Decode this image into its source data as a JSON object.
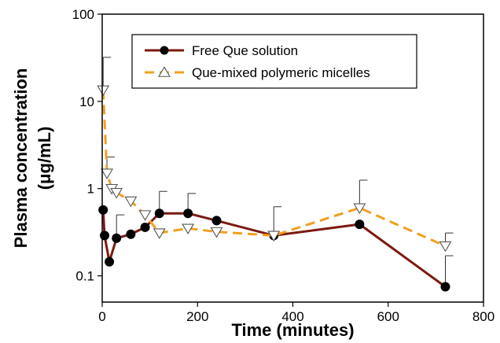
{
  "chart_data": {
    "type": "line",
    "xlabel": "Time (minutes)",
    "ylabel_lines": [
      "Plasma concentration",
      "(μg/mL)"
    ],
    "x_scale": "linear",
    "y_scale": "log",
    "xlim": [
      0,
      800
    ],
    "ylim": [
      0.05,
      100
    ],
    "x_ticks": [
      "0",
      "200",
      "400",
      "600",
      "800"
    ],
    "y_ticks": [
      "100",
      "10",
      "1",
      "0.1"
    ],
    "grid": false,
    "legend_position": "top-center",
    "series": [
      {
        "name": "Free Que solution",
        "color": "#7b1a12",
        "line_style": "solid",
        "marker": "filled-circle",
        "points": [
          {
            "x": 2,
            "y": 0.57
          },
          {
            "x": 5,
            "y": 0.29
          },
          {
            "x": 15,
            "y": 0.145
          },
          {
            "x": 30,
            "y": 0.27
          },
          {
            "x": 60,
            "y": 0.3
          },
          {
            "x": 90,
            "y": 0.36
          },
          {
            "x": 120,
            "y": 0.52
          },
          {
            "x": 180,
            "y": 0.52
          },
          {
            "x": 240,
            "y": 0.43
          },
          {
            "x": 360,
            "y": 0.29
          },
          {
            "x": 540,
            "y": 0.39
          },
          {
            "x": 720,
            "y": 0.075
          }
        ],
        "error_upper": [
          null,
          null,
          null,
          0.5,
          null,
          null,
          0.93,
          0.88,
          null,
          0.62,
          null,
          0.17
        ]
      },
      {
        "name": "Que-mixed polymeric micelles",
        "color": "#f0a020",
        "line_style": "dashed",
        "marker": "open-triangle-down",
        "points": [
          {
            "x": 2,
            "y": 13.5
          },
          {
            "x": 10,
            "y": 1.5
          },
          {
            "x": 20,
            "y": 1.0
          },
          {
            "x": 30,
            "y": 0.9
          },
          {
            "x": 60,
            "y": 0.72
          },
          {
            "x": 90,
            "y": 0.5
          },
          {
            "x": 120,
            "y": 0.31
          },
          {
            "x": 180,
            "y": 0.35
          },
          {
            "x": 240,
            "y": 0.32
          },
          {
            "x": 360,
            "y": 0.29
          },
          {
            "x": 540,
            "y": 0.6
          },
          {
            "x": 720,
            "y": 0.22
          }
        ],
        "error_upper": [
          32,
          2.3,
          null,
          null,
          null,
          null,
          null,
          null,
          null,
          null,
          1.25,
          0.31
        ]
      }
    ]
  }
}
